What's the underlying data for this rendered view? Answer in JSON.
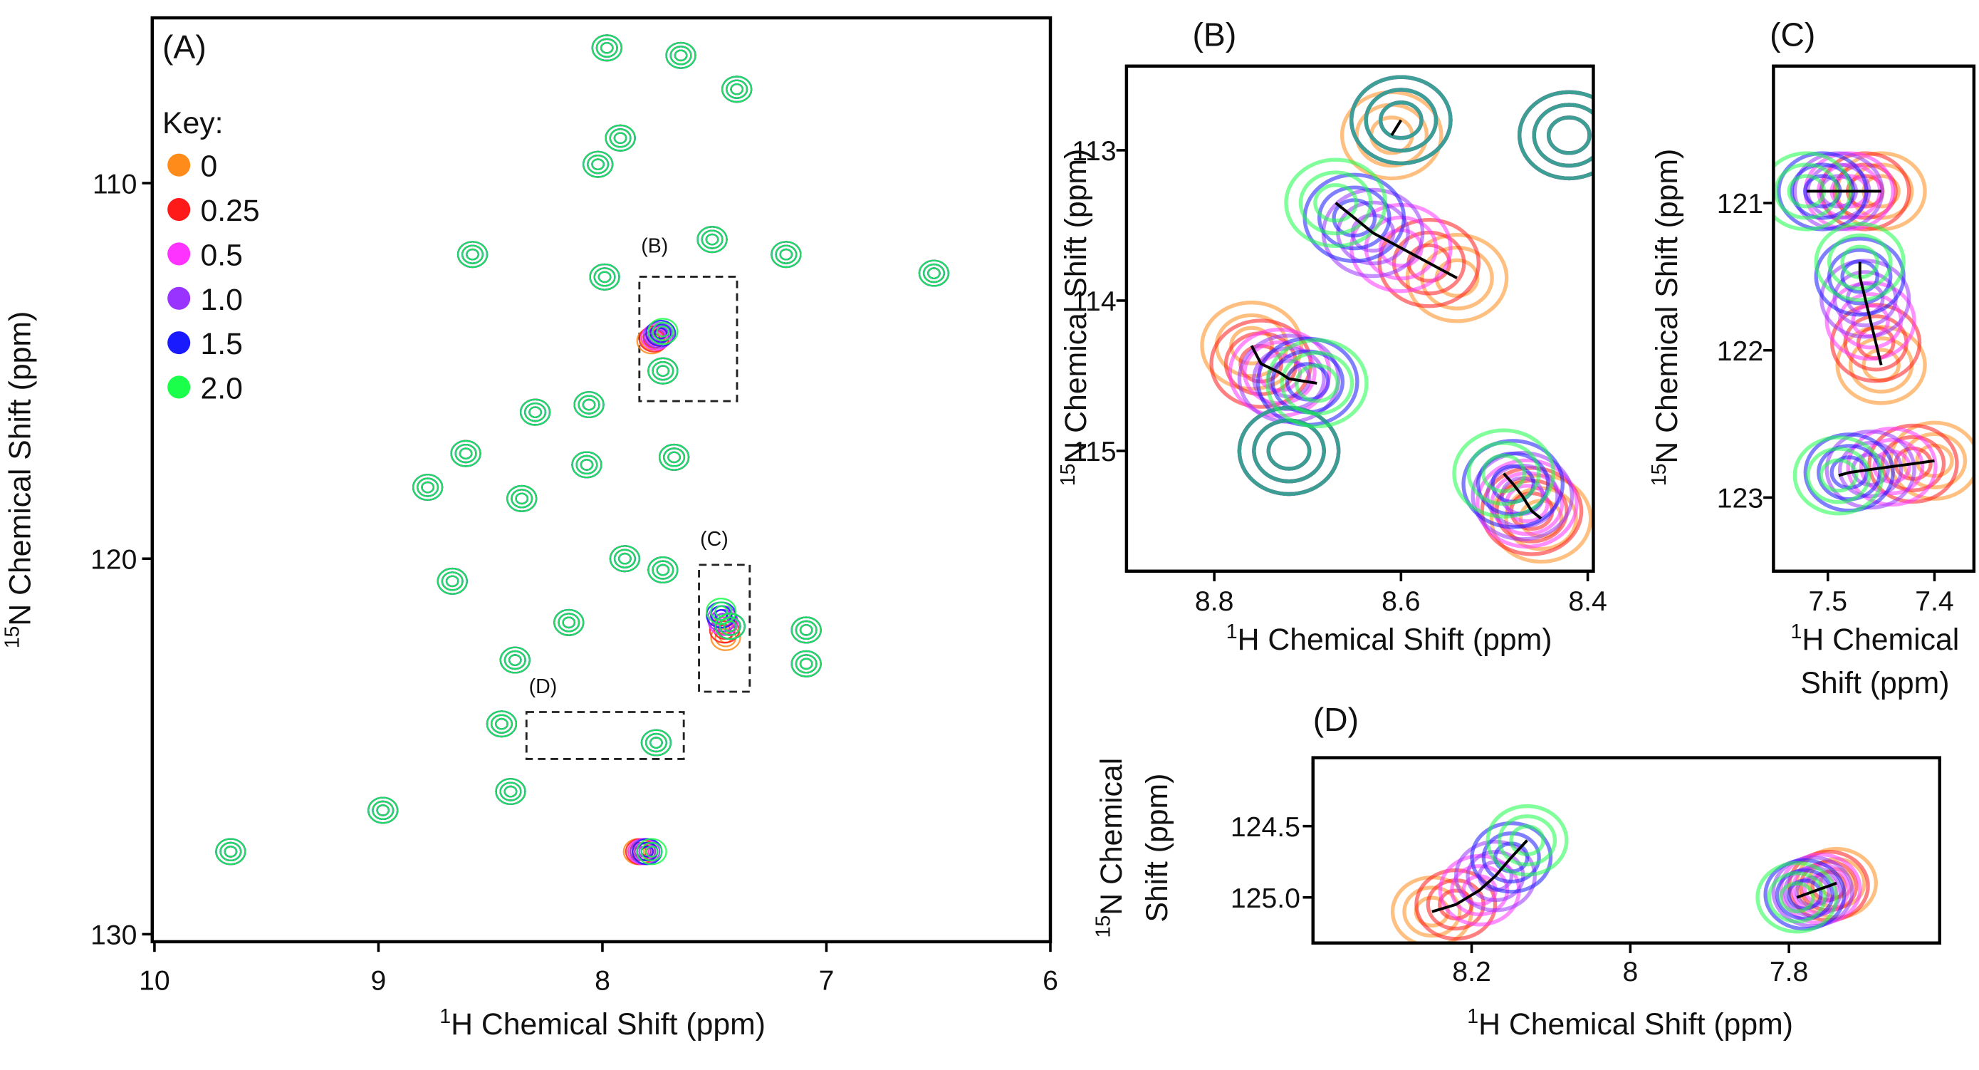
{
  "chart_data": [
    {
      "type": "contour",
      "panel": "(A)",
      "legend_title": "Key:",
      "xlabel": {
        "sup": "1",
        "lines": [
          "H Chemical Shift (ppm)"
        ]
      },
      "ylabel": {
        "sup": "15",
        "lines": [
          "N Chemical Shift (ppm)"
        ]
      },
      "xlim": [
        6.0,
        10.01
      ],
      "xreverse": true,
      "xticks": [
        10,
        9,
        8,
        7,
        6
      ],
      "ylim": [
        105.6,
        130.2
      ],
      "yreverse": true,
      "yticks": [
        110,
        120,
        130
      ],
      "annotations": [
        "(B)",
        "(C)",
        "(D)"
      ],
      "series": [
        {
          "name": "0",
          "color": "#ff8c1a",
          "x": [
            7.98,
            7.65,
            7.4,
            7.92,
            8.02,
            7.51,
            7.18,
            6.52,
            8.58,
            7.99,
            7.78,
            7.73,
            8.3,
            8.06,
            8.61,
            8.07,
            7.68,
            8.78,
            8.36,
            7.9,
            7.73,
            8.67,
            7.45,
            8.15,
            8.39,
            7.43,
            7.09,
            7.09,
            8.45,
            7.76,
            8.41,
            8.98,
            7.84,
            9.66
          ],
          "values": [
            106.4,
            106.6,
            107.5,
            108.8,
            109.5,
            111.5,
            111.9,
            112.4,
            111.9,
            112.5,
            114.2,
            115.0,
            116.1,
            115.9,
            117.2,
            117.5,
            117.3,
            118.1,
            118.4,
            120.0,
            120.3,
            120.6,
            122.1,
            121.7,
            122.7,
            121.8,
            121.9,
            122.8,
            124.4,
            124.9,
            126.2,
            126.7,
            127.8,
            127.8
          ]
        },
        {
          "name": "0.25",
          "color": "#ff1a1a",
          "x": [
            7.98,
            7.65,
            7.4,
            7.92,
            8.02,
            7.51,
            7.18,
            6.52,
            8.58,
            7.99,
            7.77,
            7.73,
            8.3,
            8.06,
            8.61,
            8.07,
            7.68,
            8.78,
            8.36,
            7.9,
            7.73,
            8.67,
            7.455,
            8.15,
            8.39,
            7.43,
            7.09,
            7.09,
            8.45,
            7.76,
            8.41,
            8.98,
            7.83,
            9.66
          ],
          "values": [
            106.4,
            106.6,
            107.5,
            108.8,
            109.5,
            111.5,
            111.9,
            112.4,
            111.9,
            112.5,
            114.15,
            115.0,
            116.1,
            115.9,
            117.2,
            117.5,
            117.3,
            118.1,
            118.4,
            120.0,
            120.3,
            120.6,
            121.9,
            121.7,
            122.7,
            121.8,
            121.9,
            122.8,
            124.4,
            124.9,
            126.2,
            126.7,
            127.8,
            127.8
          ]
        },
        {
          "name": "0.5",
          "color": "#ff33ff",
          "x": [
            7.98,
            7.65,
            7.4,
            7.92,
            8.02,
            7.51,
            7.18,
            6.52,
            8.58,
            7.99,
            7.76,
            7.73,
            8.3,
            8.06,
            8.61,
            8.07,
            7.68,
            8.78,
            8.36,
            7.9,
            7.73,
            8.67,
            7.46,
            8.15,
            8.39,
            7.43,
            7.09,
            7.09,
            8.45,
            7.76,
            8.41,
            8.98,
            7.82,
            9.66
          ],
          "values": [
            106.4,
            106.6,
            107.5,
            108.8,
            109.5,
            111.5,
            111.9,
            112.4,
            111.9,
            112.5,
            114.1,
            115.0,
            116.1,
            115.9,
            117.2,
            117.5,
            117.3,
            118.1,
            118.4,
            120.0,
            120.3,
            120.6,
            121.7,
            121.7,
            122.7,
            121.8,
            121.9,
            122.8,
            124.4,
            124.9,
            126.2,
            126.7,
            127.8,
            127.8
          ]
        },
        {
          "name": "1.0",
          "color": "#9933ff",
          "x": [
            7.98,
            7.65,
            7.4,
            7.92,
            8.02,
            7.51,
            7.18,
            6.52,
            8.58,
            7.99,
            7.75,
            7.73,
            8.3,
            8.06,
            8.61,
            8.07,
            7.68,
            8.78,
            8.36,
            7.9,
            7.73,
            8.67,
            7.465,
            8.15,
            8.39,
            7.43,
            7.09,
            7.09,
            8.45,
            7.76,
            8.41,
            8.98,
            7.81,
            9.66
          ],
          "values": [
            106.4,
            106.6,
            107.5,
            108.8,
            109.5,
            111.5,
            111.9,
            112.4,
            111.9,
            112.5,
            114.05,
            115.0,
            116.1,
            115.9,
            117.2,
            117.5,
            117.3,
            118.1,
            118.4,
            120.0,
            120.3,
            120.6,
            121.6,
            121.7,
            122.7,
            121.8,
            121.9,
            122.8,
            124.4,
            124.9,
            126.2,
            126.7,
            127.8,
            127.8
          ]
        },
        {
          "name": "1.5",
          "color": "#1a1aff",
          "x": [
            7.98,
            7.65,
            7.4,
            7.92,
            8.02,
            7.51,
            7.18,
            6.52,
            8.58,
            7.99,
            7.74,
            7.73,
            8.3,
            8.06,
            8.61,
            8.07,
            7.68,
            8.78,
            8.36,
            7.9,
            7.73,
            8.67,
            7.47,
            8.15,
            8.39,
            7.43,
            7.09,
            7.09,
            8.45,
            7.76,
            8.41,
            8.98,
            7.8,
            9.66
          ],
          "values": [
            106.4,
            106.6,
            107.5,
            108.8,
            109.5,
            111.5,
            111.9,
            112.4,
            111.9,
            112.5,
            114.0,
            115.0,
            116.1,
            115.9,
            117.2,
            117.5,
            117.3,
            118.1,
            118.4,
            120.0,
            120.3,
            120.6,
            121.5,
            121.7,
            122.7,
            121.8,
            121.9,
            122.8,
            124.4,
            124.9,
            126.2,
            126.7,
            127.8,
            127.8
          ]
        },
        {
          "name": "2.0",
          "color": "#1aff4a",
          "x": [
            7.98,
            7.65,
            7.4,
            7.92,
            8.02,
            7.51,
            7.18,
            6.52,
            8.58,
            7.99,
            7.73,
            7.73,
            8.3,
            8.06,
            8.61,
            8.07,
            7.68,
            8.78,
            8.36,
            7.9,
            7.73,
            8.67,
            7.47,
            8.15,
            8.39,
            7.43,
            7.09,
            7.09,
            8.45,
            7.76,
            8.41,
            8.98,
            7.78,
            9.66
          ],
          "values": [
            106.4,
            106.6,
            107.5,
            108.8,
            109.5,
            111.5,
            111.9,
            112.4,
            111.9,
            112.5,
            113.95,
            115.0,
            116.1,
            115.9,
            117.2,
            117.5,
            117.3,
            118.1,
            118.4,
            120.0,
            120.3,
            120.6,
            121.4,
            121.7,
            122.7,
            121.8,
            121.9,
            122.8,
            124.4,
            124.9,
            126.2,
            126.7,
            127.8,
            127.8
          ]
        }
      ]
    },
    {
      "type": "contour",
      "panel": "(B)",
      "trajectories": true,
      "xlabel": {
        "sup": "1",
        "lines": [
          "H Chemical Shift (ppm)"
        ]
      },
      "ylabel": {
        "sup": "15",
        "lines": [
          "N Chemical Shift (ppm)"
        ]
      },
      "xlim": [
        8.394,
        8.894
      ],
      "xreverse": true,
      "xticks": [
        8.8,
        8.6,
        8.4
      ],
      "ylim": [
        112.44,
        115.8
      ],
      "yreverse": true,
      "yticks": [
        113,
        114,
        115
      ],
      "series": [
        {
          "color": "#ff8c1a",
          "x": [
            8.61,
            8.54,
            8.76,
            8.72,
            8.45,
            8.42
          ],
          "values": [
            112.9,
            113.85,
            114.3,
            115.0,
            115.45,
            112.9
          ]
        },
        {
          "color": "#ff1a1a",
          "x": [
            8.6,
            8.57,
            8.75,
            8.72,
            8.46,
            8.42
          ],
          "values": [
            112.8,
            113.75,
            114.42,
            115.0,
            115.4,
            112.9
          ]
        },
        {
          "color": "#ff33ff",
          "x": [
            8.6,
            8.6,
            8.73,
            8.72,
            8.465,
            8.42
          ],
          "values": [
            112.8,
            113.65,
            114.48,
            115.0,
            115.35,
            112.9
          ]
        },
        {
          "color": "#9933ff",
          "x": [
            8.6,
            8.63,
            8.72,
            8.72,
            8.47,
            8.42
          ],
          "values": [
            112.8,
            113.55,
            114.52,
            115.0,
            115.3,
            112.9
          ]
        },
        {
          "color": "#1a1aff",
          "x": [
            8.6,
            8.65,
            8.7,
            8.72,
            8.48,
            8.42
          ],
          "values": [
            112.8,
            113.45,
            114.54,
            115.0,
            115.22,
            112.9
          ]
        },
        {
          "color": "#1aff4a",
          "x": [
            8.6,
            8.67,
            8.69,
            8.72,
            8.49,
            8.42
          ],
          "values": [
            112.8,
            113.35,
            114.55,
            115.0,
            115.15,
            112.9
          ]
        }
      ]
    },
    {
      "type": "contour",
      "panel": "(C)",
      "trajectories": true,
      "xlabel": {
        "sup": "1",
        "lines": [
          "H Chemical",
          "Shift (ppm)"
        ]
      },
      "ylabel": {
        "sup": "15",
        "lines": [
          "N Chemical Shift (ppm)"
        ]
      },
      "xlim": [
        7.363,
        7.551
      ],
      "xreverse": true,
      "xticks": [
        7.5,
        7.4
      ],
      "ylim": [
        120.07,
        123.5
      ],
      "yreverse": true,
      "yticks": [
        121,
        122,
        123
      ],
      "series": [
        {
          "color": "#ff8c1a",
          "x": [
            7.45,
            7.45,
            7.4
          ],
          "values": [
            120.92,
            122.1,
            122.75
          ]
        },
        {
          "color": "#ff1a1a",
          "x": [
            7.465,
            7.455,
            7.42
          ],
          "values": [
            120.92,
            121.95,
            122.77
          ]
        },
        {
          "color": "#ff33ff",
          "x": [
            7.48,
            7.46,
            7.44
          ],
          "values": [
            120.92,
            121.8,
            122.79
          ]
        },
        {
          "color": "#9933ff",
          "x": [
            7.49,
            7.465,
            7.46
          ],
          "values": [
            120.92,
            121.65,
            122.81
          ]
        },
        {
          "color": "#1a1aff",
          "x": [
            7.505,
            7.47,
            7.48
          ],
          "values": [
            120.92,
            121.5,
            122.83
          ]
        },
        {
          "color": "#1aff4a",
          "x": [
            7.52,
            7.47,
            7.49
          ],
          "values": [
            120.92,
            121.4,
            122.85
          ]
        }
      ]
    },
    {
      "type": "contour",
      "panel": "(D)",
      "trajectories": true,
      "xlabel": {
        "sup": "1",
        "lines": [
          "H Chemical Shift (ppm)"
        ]
      },
      "ylabel": {
        "sup": "15",
        "lines": [
          "N Chemical",
          "Shift (ppm)"
        ]
      },
      "xlim": [
        7.61,
        8.4
      ],
      "xreverse": true,
      "xticks": [
        8.2,
        8,
        7.8
      ],
      "ylim": [
        124.02,
        125.32
      ],
      "yreverse": true,
      "yticks": [
        124.5,
        {
          "value": 125,
          "label": "125.0"
        }
      ],
      "series": [
        {
          "color": "#ff8c1a",
          "x": [
            8.25,
            7.74
          ],
          "values": [
            125.1,
            124.9
          ]
        },
        {
          "color": "#ff1a1a",
          "x": [
            8.22,
            7.75
          ],
          "values": [
            125.05,
            124.92
          ]
        },
        {
          "color": "#ff33ff",
          "x": [
            8.19,
            7.76
          ],
          "values": [
            124.95,
            124.94
          ]
        },
        {
          "color": "#9933ff",
          "x": [
            8.17,
            7.77
          ],
          "values": [
            124.85,
            124.96
          ]
        },
        {
          "color": "#1a1aff",
          "x": [
            8.15,
            7.78
          ],
          "values": [
            124.72,
            124.98
          ]
        },
        {
          "color": "#1aff4a",
          "x": [
            8.13,
            7.79
          ],
          "values": [
            124.6,
            125.0
          ]
        }
      ]
    }
  ]
}
